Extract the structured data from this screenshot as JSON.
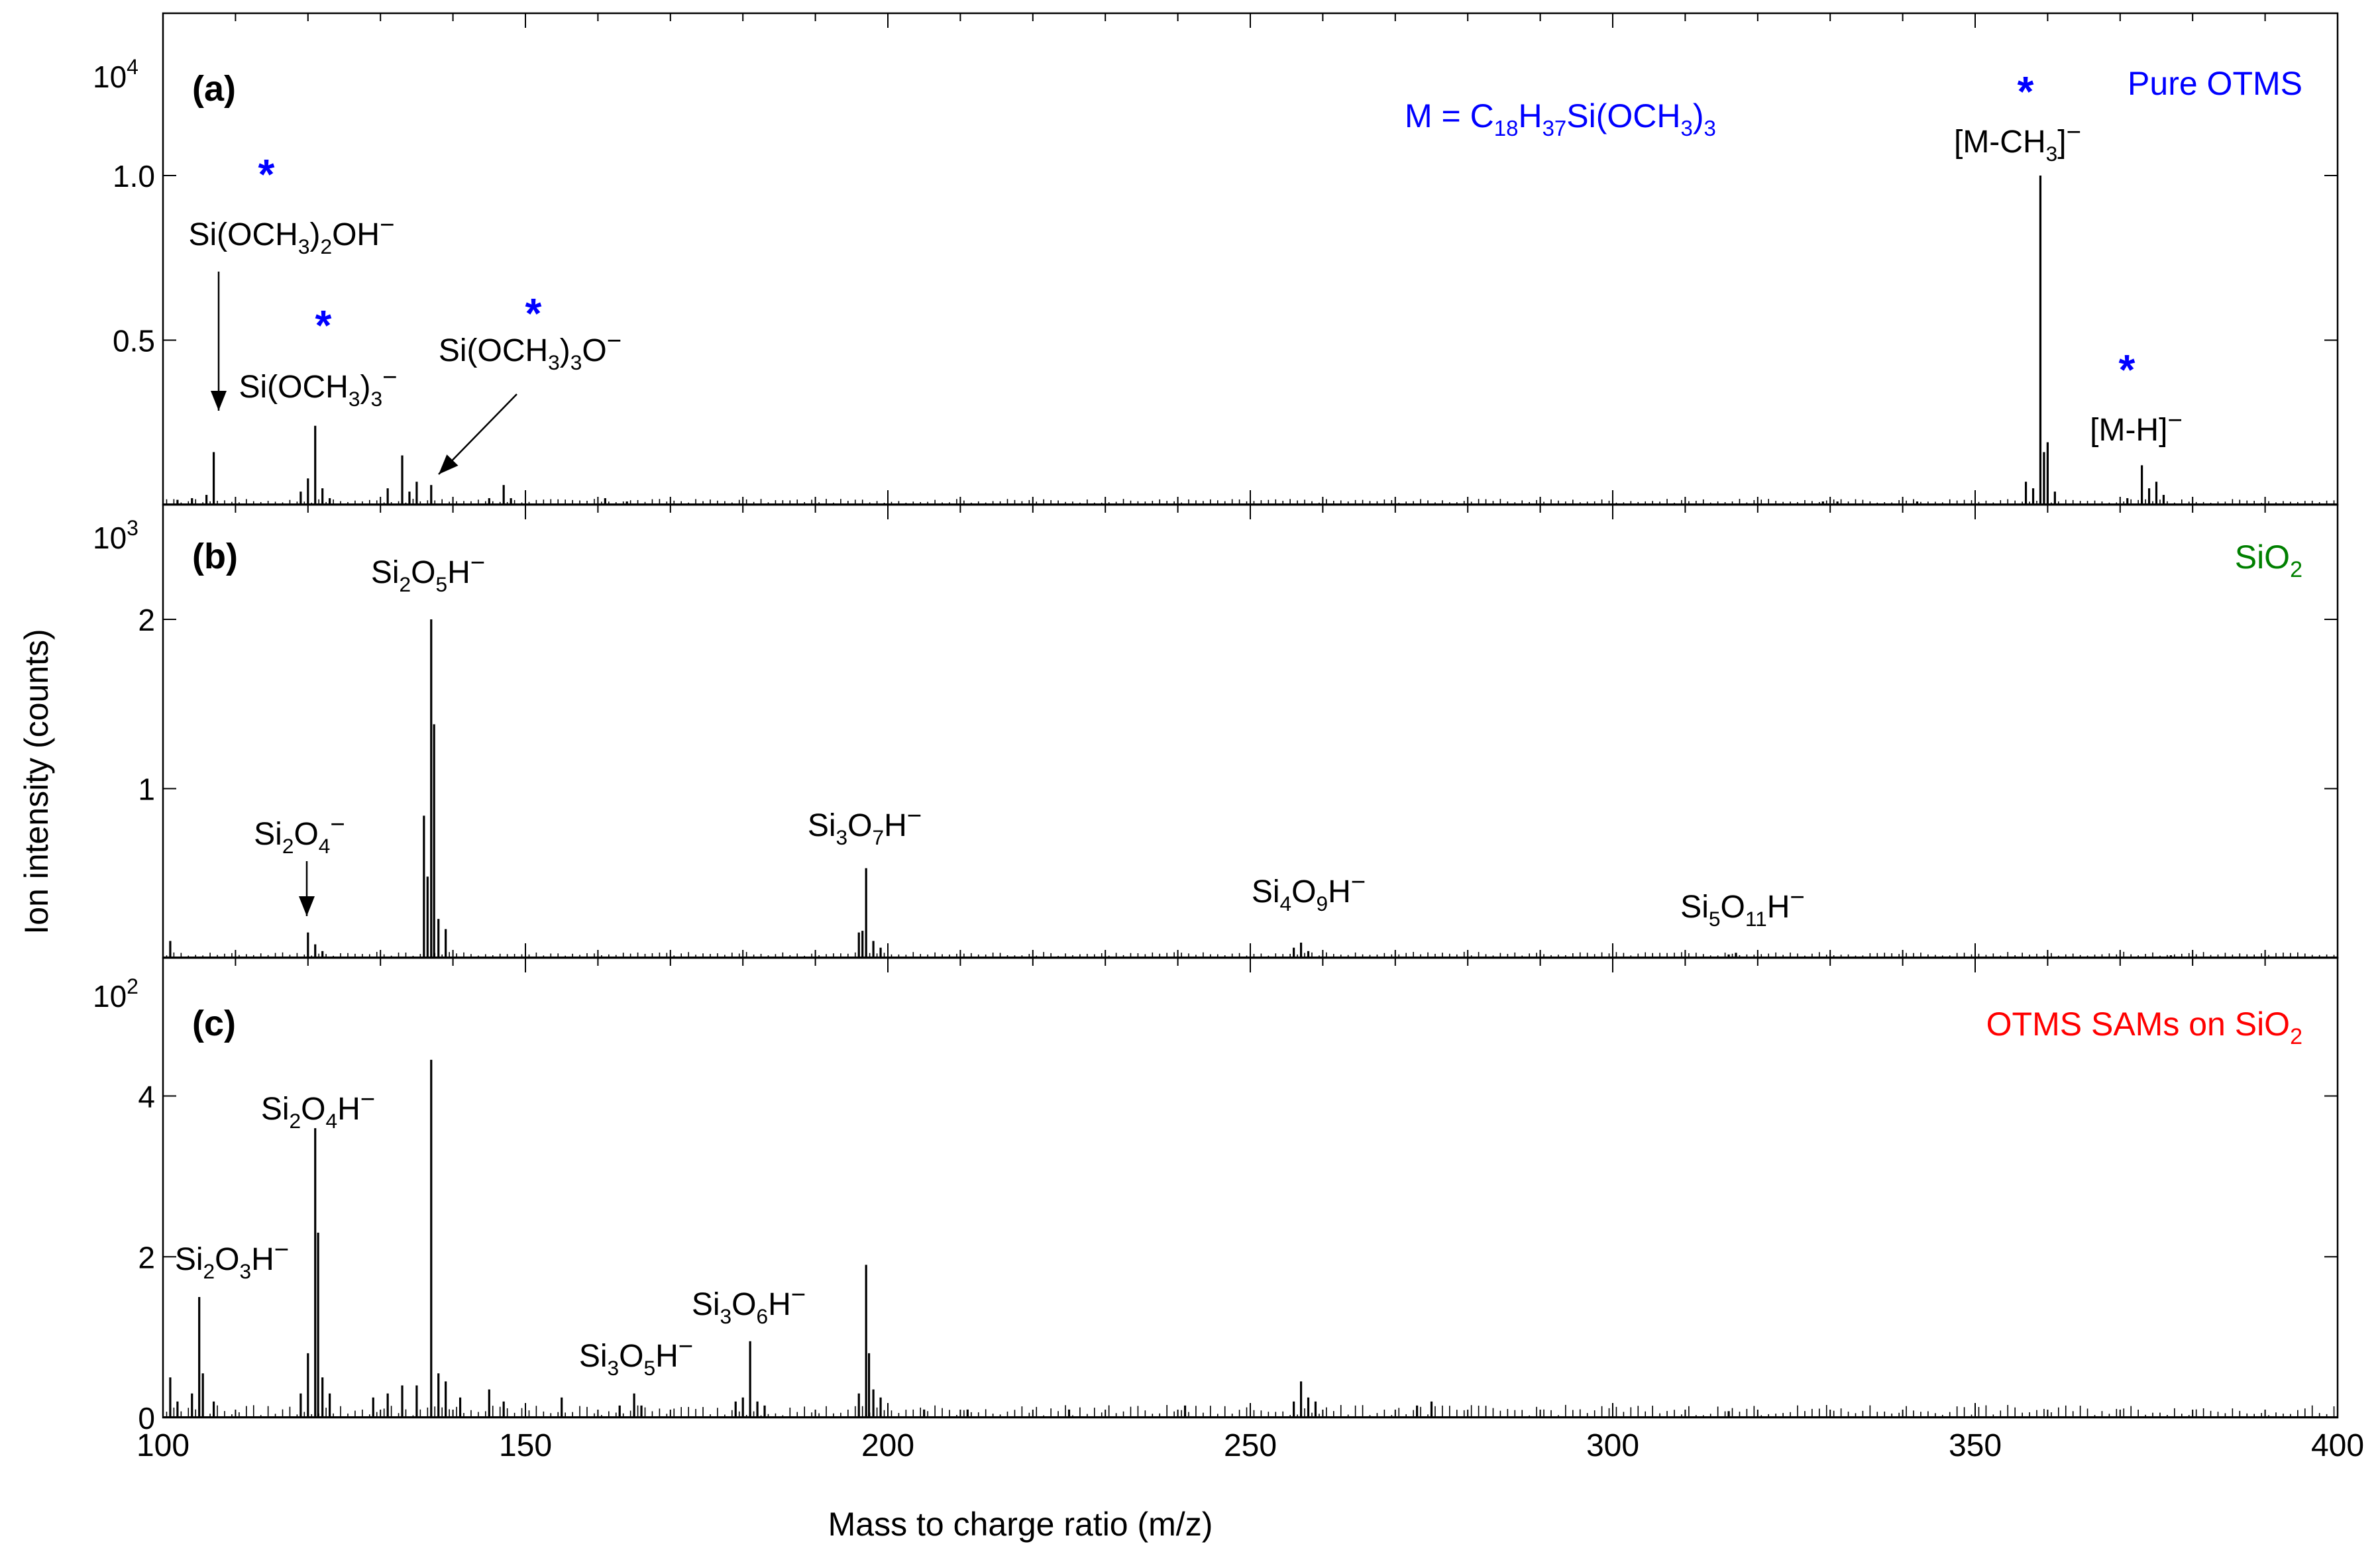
{
  "figure": {
    "ylabel": "Ion intensity (counts)",
    "xlabel": "Mass to charge ratio (m/z)",
    "x_ticks": [
      "100",
      "150",
      "200",
      "250",
      "300",
      "350",
      "400"
    ]
  },
  "chart_data": [
    {
      "type": "bar",
      "panel": "(a)",
      "sample": "Pure OTMS",
      "sample_color": "#0000ff",
      "formula": [
        "M = C",
        "18",
        "H",
        "37",
        "Si(OCH",
        "3",
        ")",
        "3"
      ],
      "multiplier": {
        "base": "10",
        "exp": "4"
      },
      "xlim": [
        100,
        400
      ],
      "ylim": [
        0,
        1.0
      ],
      "y_ticks": [
        0.5,
        1.0
      ],
      "y_tick_labels": [
        "0.5",
        "1.0"
      ],
      "peaks": [
        {
          "x": 107,
          "y": 0.16
        },
        {
          "x": 106,
          "y": 0.03
        },
        {
          "x": 104,
          "y": 0.02
        },
        {
          "x": 102,
          "y": 0.015
        },
        {
          "x": 121,
          "y": 0.24
        },
        {
          "x": 120,
          "y": 0.08
        },
        {
          "x": 119,
          "y": 0.04
        },
        {
          "x": 122,
          "y": 0.05
        },
        {
          "x": 123,
          "y": 0.02
        },
        {
          "x": 131,
          "y": 0.05
        },
        {
          "x": 133,
          "y": 0.15
        },
        {
          "x": 134,
          "y": 0.04
        },
        {
          "x": 135,
          "y": 0.07
        },
        {
          "x": 137,
          "y": 0.06
        },
        {
          "x": 145,
          "y": 0.02
        },
        {
          "x": 147,
          "y": 0.06
        },
        {
          "x": 148,
          "y": 0.02
        },
        {
          "x": 161,
          "y": 0.02
        },
        {
          "x": 164,
          "y": 0.01
        },
        {
          "x": 329,
          "y": 0.01
        },
        {
          "x": 331,
          "y": 0.01
        },
        {
          "x": 342,
          "y": 0.01
        },
        {
          "x": 357,
          "y": 0.07
        },
        {
          "x": 358,
          "y": 0.05
        },
        {
          "x": 359,
          "y": 1.0
        },
        {
          "x": 359.5,
          "y": 0.16
        },
        {
          "x": 360,
          "y": 0.19
        },
        {
          "x": 361,
          "y": 0.04
        },
        {
          "x": 371,
          "y": 0.02
        },
        {
          "x": 373,
          "y": 0.12
        },
        {
          "x": 374,
          "y": 0.05
        },
        {
          "x": 375,
          "y": 0.07
        },
        {
          "x": 376,
          "y": 0.03
        }
      ],
      "annotations": [
        {
          "parts": [
            "Si(OCH",
            "3",
            ")",
            "2",
            "OH",
            "−"
          ],
          "star": true,
          "arrow_to": {
            "x": 107,
            "y": 0.27
          }
        },
        {
          "parts": [
            "Si(OCH",
            "3",
            ")",
            "3",
            "−"
          ],
          "star": true
        },
        {
          "parts": [
            "Si(OCH",
            "3",
            ")",
            "3",
            "O",
            "−"
          ],
          "star": true,
          "arrow_to": {
            "x": 137,
            "y": 0.08
          }
        },
        {
          "parts": [
            "[M-CH",
            "3",
            "]",
            "−"
          ],
          "star": true
        },
        {
          "parts": [
            "[M-H]",
            "−"
          ],
          "star": true
        }
      ]
    },
    {
      "type": "bar",
      "panel": "(b)",
      "sample": "SiO",
      "sample_sub": "2",
      "sample_color": "#008000",
      "multiplier": {
        "base": "10",
        "exp": "3"
      },
      "xlim": [
        100,
        400
      ],
      "ylim": [
        0,
        2.0
      ],
      "y_ticks": [
        1,
        2
      ],
      "y_tick_labels": [
        "1",
        "2"
      ],
      "peaks": [
        {
          "x": 101,
          "y": 0.1
        },
        {
          "x": 120,
          "y": 0.15
        },
        {
          "x": 121,
          "y": 0.08
        },
        {
          "x": 122,
          "y": 0.04
        },
        {
          "x": 136,
          "y": 0.84
        },
        {
          "x": 136.5,
          "y": 0.48
        },
        {
          "x": 137,
          "y": 2.0
        },
        {
          "x": 137.4,
          "y": 1.38
        },
        {
          "x": 138,
          "y": 0.23
        },
        {
          "x": 139,
          "y": 0.17
        },
        {
          "x": 196,
          "y": 0.15
        },
        {
          "x": 196.5,
          "y": 0.16
        },
        {
          "x": 197,
          "y": 0.53
        },
        {
          "x": 198,
          "y": 0.1
        },
        {
          "x": 199,
          "y": 0.06
        },
        {
          "x": 256,
          "y": 0.06
        },
        {
          "x": 257,
          "y": 0.09
        },
        {
          "x": 258,
          "y": 0.04
        },
        {
          "x": 316,
          "y": 0.02
        },
        {
          "x": 317,
          "y": 0.03
        },
        {
          "x": 377,
          "y": 0.015
        }
      ],
      "annotations": [
        {
          "parts": [
            "Si",
            "2",
            "O",
            "5",
            "H",
            "−"
          ]
        },
        {
          "parts": [
            "Si",
            "2",
            "O",
            "4",
            "−"
          ],
          "arrow_to": {
            "x": 120,
            "y": 0.2
          }
        },
        {
          "parts": [
            "Si",
            "3",
            "O",
            "7",
            "H",
            "−"
          ]
        },
        {
          "parts": [
            "Si",
            "4",
            "O",
            "9",
            "H",
            "−"
          ]
        },
        {
          "parts": [
            "Si",
            "5",
            "O",
            "11",
            "H",
            "−"
          ]
        }
      ]
    },
    {
      "type": "bar",
      "panel": "(c)",
      "sample": "OTMS SAMs on SiO",
      "sample_sub": "2",
      "sample_color": "#ff0000",
      "multiplier": {
        "base": "10",
        "exp": "2"
      },
      "xlim": [
        100,
        400
      ],
      "ylim": [
        0,
        4.4
      ],
      "y_ticks": [
        0,
        2,
        4
      ],
      "y_tick_labels": [
        "0",
        "2",
        "4"
      ],
      "peaks": [
        {
          "x": 101,
          "y": 0.5
        },
        {
          "x": 102,
          "y": 0.2
        },
        {
          "x": 104,
          "y": 0.3
        },
        {
          "x": 105,
          "y": 1.5
        },
        {
          "x": 105.5,
          "y": 0.55
        },
        {
          "x": 107,
          "y": 0.2
        },
        {
          "x": 119,
          "y": 0.3
        },
        {
          "x": 120,
          "y": 0.8
        },
        {
          "x": 121,
          "y": 3.6
        },
        {
          "x": 121.4,
          "y": 2.3
        },
        {
          "x": 122,
          "y": 0.5
        },
        {
          "x": 123,
          "y": 0.3
        },
        {
          "x": 129,
          "y": 0.25
        },
        {
          "x": 131,
          "y": 0.3
        },
        {
          "x": 133,
          "y": 0.4
        },
        {
          "x": 135,
          "y": 0.4
        },
        {
          "x": 137,
          "y": 4.45
        },
        {
          "x": 138,
          "y": 0.55
        },
        {
          "x": 139,
          "y": 0.45
        },
        {
          "x": 141,
          "y": 0.25
        },
        {
          "x": 145,
          "y": 0.35
        },
        {
          "x": 147,
          "y": 0.2
        },
        {
          "x": 155,
          "y": 0.25
        },
        {
          "x": 163,
          "y": 0.15
        },
        {
          "x": 165,
          "y": 0.3
        },
        {
          "x": 166,
          "y": 0.15
        },
        {
          "x": 179,
          "y": 0.2
        },
        {
          "x": 180,
          "y": 0.25
        },
        {
          "x": 181,
          "y": 0.95
        },
        {
          "x": 182,
          "y": 0.2
        },
        {
          "x": 183,
          "y": 0.15
        },
        {
          "x": 196,
          "y": 0.3
        },
        {
          "x": 197,
          "y": 1.9
        },
        {
          "x": 197.4,
          "y": 0.8
        },
        {
          "x": 198,
          "y": 0.35
        },
        {
          "x": 199,
          "y": 0.25
        },
        {
          "x": 205,
          "y": 0.1
        },
        {
          "x": 211,
          "y": 0.1
        },
        {
          "x": 225,
          "y": 0.1
        },
        {
          "x": 241,
          "y": 0.15
        },
        {
          "x": 256,
          "y": 0.2
        },
        {
          "x": 257,
          "y": 0.45
        },
        {
          "x": 258,
          "y": 0.25
        },
        {
          "x": 259,
          "y": 0.2
        },
        {
          "x": 273,
          "y": 0.15
        },
        {
          "x": 275,
          "y": 0.2
        },
        {
          "x": 316,
          "y": 0.08
        }
      ],
      "annotations": [
        {
          "parts": [
            "Si",
            "2",
            "O",
            "4",
            "H",
            "−"
          ]
        },
        {
          "parts": [
            "Si",
            "2",
            "O",
            "3",
            "H",
            "−"
          ]
        },
        {
          "parts": [
            "Si",
            "3",
            "O",
            "5",
            "H",
            "−"
          ]
        },
        {
          "parts": [
            "Si",
            "3",
            "O",
            "6",
            "H",
            "−"
          ]
        }
      ]
    }
  ]
}
